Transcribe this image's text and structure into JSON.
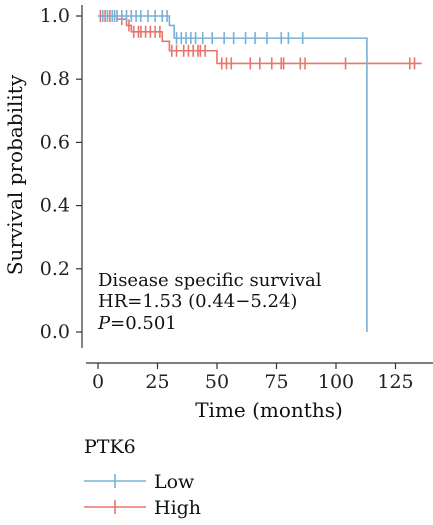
{
  "chart_data": {
    "type": "line",
    "subtype": "kaplan-meier",
    "xlabel": "Time (months)",
    "ylabel": "Survival probability",
    "xlim": [
      -4,
      136
    ],
    "ylim": [
      -0.05,
      1.03
    ],
    "xticks": [
      0,
      25,
      50,
      75,
      100,
      125
    ],
    "yticks": [
      0.0,
      0.2,
      0.4,
      0.6,
      0.8,
      1.0
    ],
    "xtick_labels": [
      "0",
      "25",
      "50",
      "75",
      "100",
      "125"
    ],
    "ytick_labels": [
      "0.0",
      "0.2",
      "0.4",
      "0.6",
      "0.8",
      "1.0"
    ],
    "grid": false,
    "annotations": {
      "line1": "Disease specific survival",
      "line2": "HR=1.53 (0.44−5.24)",
      "p_label": "P",
      "p_value": "=0.501"
    },
    "legend": {
      "title": "PTK6",
      "position": "bottom-left",
      "entries": [
        "Low",
        "High"
      ]
    },
    "series": [
      {
        "name": "Low",
        "color": "#7ab0d6",
        "steps": [
          [
            0,
            1.0
          ],
          [
            30,
            0.97
          ],
          [
            32,
            0.93
          ],
          [
            113,
            0.93
          ],
          [
            113,
            0.0
          ]
        ],
        "censor_times": [
          2,
          4,
          6,
          7,
          8,
          10,
          12,
          14,
          16,
          18,
          21,
          24,
          27,
          29,
          33,
          35,
          37,
          39,
          41,
          44,
          48,
          53,
          57,
          62,
          66,
          71,
          77,
          80,
          86
        ]
      },
      {
        "name": "High",
        "color": "#e8756b",
        "steps": [
          [
            0,
            1.0
          ],
          [
            8,
            0.99
          ],
          [
            12,
            0.97
          ],
          [
            14,
            0.95
          ],
          [
            27,
            0.92
          ],
          [
            30,
            0.89
          ],
          [
            49,
            0.89
          ],
          [
            50,
            0.85
          ],
          [
            136,
            0.85
          ]
        ],
        "censor_times": [
          1,
          3,
          5,
          10,
          13,
          15,
          17,
          18,
          20,
          22,
          24,
          26,
          31,
          33,
          36,
          38,
          40,
          42,
          43,
          45,
          52,
          54,
          56,
          64,
          68,
          73,
          77,
          78,
          85,
          87,
          104,
          131,
          133
        ]
      }
    ]
  }
}
